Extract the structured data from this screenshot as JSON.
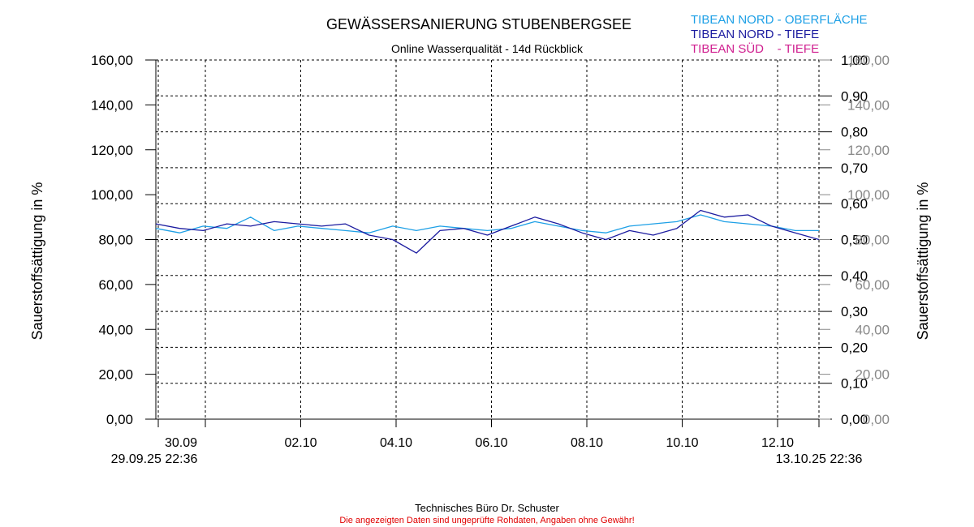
{
  "title": "GEWÄSSERSANIERUNG STUBENBERGSEE",
  "subtitle": "Online Wasserqualität - 14d Rückblick",
  "footer": {
    "company": "Technisches Büro Dr. Schuster",
    "disclaimer": "Die angezeigten Daten sind ungeprüfte Rohdaten, Angaben ohne Gewähr!"
  },
  "legend": [
    {
      "label": "TIBEAN NORD - OBERFLÄCHE",
      "color": "#1ea0e6"
    },
    {
      "label": "TIBEAN NORD - TIEFE",
      "color": "#1c1ca0"
    },
    {
      "label": "TIBEAN SÜD    - TIEFE",
      "color": "#d02090"
    }
  ],
  "chart_data": {
    "type": "line",
    "title": "GEWÄSSERSANIERUNG STUBENBERGSEE",
    "subtitle": "Online Wasserqualität - 14d Rückblick",
    "ylabel": "Sauerstoffsättigung in %",
    "ylabel_right": "Sauerstoffsättigung in %",
    "ylim": [
      0,
      160
    ],
    "y_ticks": [
      "0,00",
      "20,00",
      "40,00",
      "60,00",
      "80,00",
      "100,00",
      "120,00",
      "140,00",
      "160,00"
    ],
    "y2_ticks": [
      "0,00",
      "0,10",
      "0,20",
      "0,30",
      "0,40",
      "0,50",
      "0,60",
      "0,70",
      "0,80",
      "0,90",
      "1,00"
    ],
    "y3_ticks": [
      "0,00",
      "20,00",
      "40,00",
      "60,00",
      "80,00",
      "100,00",
      "120,00",
      "140,00",
      "160,00"
    ],
    "x_range_days": [
      0,
      14
    ],
    "x_start_label": "29.09.25 22:36",
    "x_end_label": "13.10.25 22:36",
    "x_tick_labels": [
      "30.09",
      "02.10",
      "04.10",
      "06.10",
      "08.10",
      "10.10",
      "12.10"
    ],
    "grid": true,
    "series": [
      {
        "name": "TIBEAN NORD - OBERFLÄCHE",
        "color": "#1ea0e6",
        "x": [
          0,
          0.5,
          1,
          1.5,
          2,
          2.5,
          3,
          3.5,
          4,
          4.5,
          5,
          5.5,
          6,
          6.5,
          7,
          7.5,
          8,
          8.5,
          9,
          9.5,
          10,
          10.5,
          11,
          11.5,
          12,
          12.5,
          13,
          13.5,
          14
        ],
        "y": [
          85,
          83,
          86,
          85,
          90,
          84,
          86,
          85,
          84,
          83,
          86,
          84,
          86,
          85,
          84,
          85,
          88,
          86,
          84,
          83,
          86,
          87,
          88,
          91,
          88,
          87,
          86,
          84,
          84
        ]
      },
      {
        "name": "TIBEAN NORD - TIEFE",
        "color": "#1c1ca0",
        "x": [
          0,
          0.5,
          1,
          1.5,
          2,
          2.5,
          3,
          3.5,
          4,
          4.5,
          5,
          5.5,
          6,
          6.5,
          7,
          7.5,
          8,
          8.5,
          9,
          9.5,
          10,
          10.5,
          11,
          11.5,
          12,
          12.5,
          13,
          13.5,
          14
        ],
        "y": [
          87,
          85,
          84,
          87,
          86,
          88,
          87,
          86,
          87,
          82,
          80,
          74,
          84,
          85,
          82,
          86,
          90,
          87,
          83,
          80,
          84,
          82,
          85,
          93,
          90,
          91,
          86,
          83,
          80
        ]
      }
    ]
  }
}
